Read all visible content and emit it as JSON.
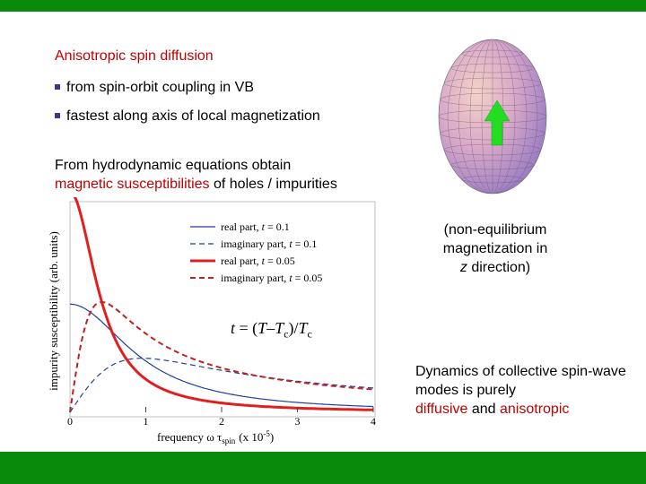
{
  "colors": {
    "green_bar": "#0a8a0a",
    "accent_red": "#c00000",
    "arrow_green": "#22dd22"
  },
  "heading": "Anisotropic spin diffusion",
  "bullets": [
    "from spin-orbit coupling in VB",
    "fastest along axis of local magnetization"
  ],
  "paragraph": {
    "line1": "From hydrodynamic equations obtain",
    "highlight": "magnetic susceptibilities",
    "rest": " of holes / impurities"
  },
  "note": {
    "line1": "(non-equilibrium",
    "line2": "magnetization in",
    "z": "z",
    "line3_rest": " direction)"
  },
  "summary": {
    "text": "Dynamics of collective spin-wave modes is purely",
    "diffusive": "diffusive",
    "and": " and ",
    "anisotropic": "anisotropic"
  },
  "formula": {
    "t": "t",
    "eq": " = (",
    "T": "T",
    "minus": "–",
    "Tc": "T",
    "c": "c",
    "close": ")/",
    "Tc2": "T",
    "c2": "c"
  },
  "chart_data": {
    "type": "line",
    "ylabel": "impurity susceptibility (arb. units)",
    "xlabel_main": "frequency ω τ",
    "xlabel_sub": "spin",
    "xlabel_unit": "(x 10",
    "xlabel_exp": "-5",
    "xlabel_close": ")",
    "xlim": [
      0,
      4
    ],
    "ylim": [
      0,
      1
    ],
    "xticks": [
      "0",
      "1",
      "2",
      "3",
      "4"
    ],
    "legend": [
      {
        "label_pre": "real part, ",
        "t": "t",
        "label_post": " = 0.1",
        "style": "solid-thin"
      },
      {
        "label_pre": "imaginary part, ",
        "t": "t",
        "label_post": " = 0.1",
        "style": "dashed-thin"
      },
      {
        "label_pre": "real part, ",
        "t": "t",
        "label_post": " = 0.05",
        "style": "solid-thick"
      },
      {
        "label_pre": "imaginary part, ",
        "t": "t",
        "label_post": " = 0.05",
        "style": "dashed-thick"
      }
    ],
    "series": [
      {
        "name": "real part, t = 0.1",
        "gamma": 0.95,
        "amp": 0.52,
        "kind": "real",
        "color": "#1f3fa0",
        "width": 1.2,
        "dash": ""
      },
      {
        "name": "imaginary part, t = 0.1",
        "gamma": 0.95,
        "amp": 0.52,
        "kind": "imag",
        "color": "#1f3fa0",
        "width": 1.2,
        "dash": "6,4"
      },
      {
        "name": "real part, t = 0.05",
        "gamma": 0.42,
        "amp": 1.06,
        "kind": "real",
        "color": "#e02020",
        "width": 3,
        "dash": ""
      },
      {
        "name": "imaginary part, t = 0.05",
        "gamma": 0.42,
        "amp": 1.06,
        "kind": "imag",
        "color": "#c02020",
        "width": 2,
        "dash": "6,4"
      }
    ]
  }
}
